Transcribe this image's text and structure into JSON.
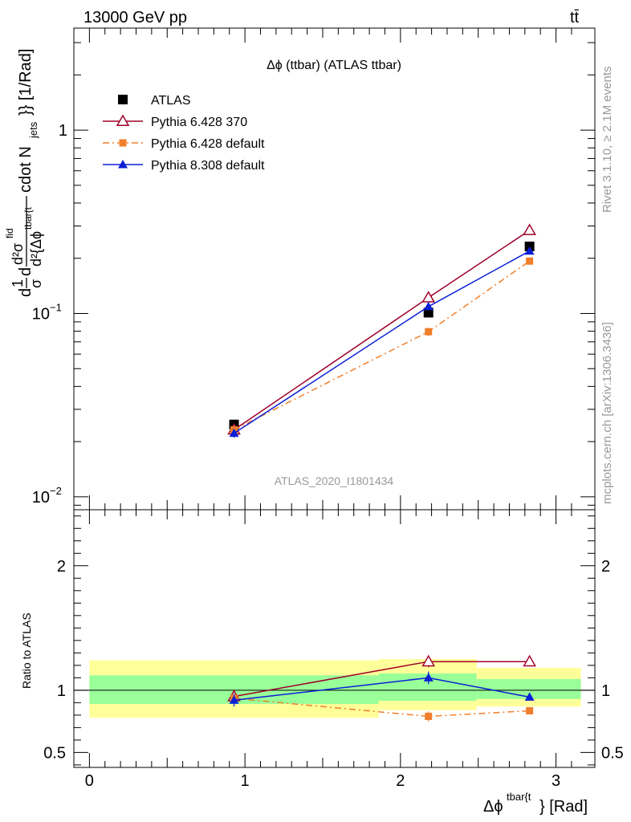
{
  "header": {
    "left": "13000 GeV pp",
    "right": "tt̄"
  },
  "side_labels": {
    "rivet": "Rivet 3.1.10, ≥ 2.1M events",
    "mcplots": "mcplots.cern.ch [arXiv:1306.3436]"
  },
  "chart_data": [
    {
      "type": "line",
      "title": "Δϕ (ttbar) (ATLAS ttbar)",
      "watermark": "ATLAS_2020_I1801434",
      "ylabel": "d¹/σ d d²σ^fid / d²{Δϕ^tbar{t} cdot N_jets}} [1/Rad]",
      "ylabel_parts": {
        "frac1_num": "1",
        "frac1_den": "σ",
        "d": "d",
        "frac2_num": "d²σ",
        "frac2_num_sup": "fid",
        "frac2_den": "d²{Δϕ",
        "frac2_den_sup": "tbar{t",
        "tail": "cdot N",
        "tail_sub": "jets",
        "tail_end": "}} [1/Rad]"
      },
      "yscale": "log",
      "ylim": [
        0.0085,
        3.6
      ],
      "xlim": [
        -0.1,
        3.25
      ],
      "yticks": [
        {
          "value": 1,
          "label": "1"
        },
        {
          "value": 0.1,
          "label": "10",
          "sup": "−1"
        },
        {
          "value": 0.01,
          "label": "10",
          "sup": "−2"
        }
      ],
      "legend_position": "top-left",
      "series": [
        {
          "name": "ATLAS",
          "color": "#000000",
          "marker": "square-filled",
          "line": "none",
          "x": [
            0.93,
            2.18,
            2.83
          ],
          "y": [
            0.0248,
            0.101,
            0.232
          ],
          "xerr": [
            0.93,
            0.31,
            0.33
          ]
        },
        {
          "name": "Pythia 6.428 370",
          "color": "#a0002a",
          "marker": "triangle-open",
          "line": "solid",
          "x": [
            0.93,
            2.18,
            2.83
          ],
          "y": [
            0.0232,
            0.122,
            0.284
          ],
          "yerr": [
            0.0008,
            0.004,
            0.006
          ]
        },
        {
          "name": "Pythia 6.428 default",
          "color": "#f07e2a",
          "marker": "square-filled-small",
          "line": "dashdot",
          "x": [
            0.93,
            2.18,
            2.83
          ],
          "y": [
            0.0232,
            0.0795,
            0.193
          ],
          "yerr": [
            0.0008,
            0.004,
            0.004
          ]
        },
        {
          "name": "Pythia 8.308 default",
          "color": "#0a1fd6",
          "marker": "triangle-filled",
          "line": "solid",
          "x": [
            0.93,
            2.18,
            2.83
          ],
          "y": [
            0.0222,
            0.109,
            0.219
          ],
          "yerr": [
            0.0012,
            0.004,
            0.004
          ]
        }
      ]
    },
    {
      "type": "line",
      "ylabel": "Ratio to ATLAS",
      "xlabel_parts": {
        "main": "Δϕ",
        "sup": "tbar{t",
        "tail": "} [Rad]"
      },
      "xlim": [
        -0.1,
        3.25
      ],
      "ylim": [
        0.38,
        2.45
      ],
      "xticks": [
        0,
        1,
        2,
        3
      ],
      "yticks": [
        {
          "value": 0.5,
          "label": "0.5"
        },
        {
          "value": 1,
          "label": "1"
        },
        {
          "value": 2,
          "label": "2"
        }
      ],
      "bands": [
        {
          "x0": 0.0,
          "x1": 1.86,
          "inner": [
            0.89,
            1.12
          ],
          "outer": [
            0.78,
            1.24
          ]
        },
        {
          "x0": 1.86,
          "x1": 2.49,
          "inner": [
            0.915,
            1.135
          ],
          "outer": [
            0.84,
            1.25
          ]
        },
        {
          "x0": 2.49,
          "x1": 3.16,
          "inner": [
            0.93,
            1.09
          ],
          "outer": [
            0.87,
            1.18
          ]
        }
      ],
      "series": [
        {
          "name": "Pythia 6.428 370",
          "color": "#a0002a",
          "marker": "triangle-open",
          "line": "solid",
          "x": [
            0.93,
            2.18,
            2.83
          ],
          "y": [
            0.95,
            1.23,
            1.23
          ],
          "yerr": [
            0.04,
            0.045,
            0.02
          ]
        },
        {
          "name": "Pythia 6.428 default",
          "color": "#f07e2a",
          "marker": "square-filled-small",
          "line": "dashdot",
          "x": [
            0.93,
            2.18,
            2.83
          ],
          "y": [
            0.935,
            0.79,
            0.835
          ],
          "yerr": [
            0.04,
            0.04,
            0.025
          ]
        },
        {
          "name": "Pythia 8.308 default",
          "color": "#0a1fd6",
          "marker": "triangle-filled",
          "line": "solid",
          "x": [
            0.93,
            2.18,
            2.83
          ],
          "y": [
            0.92,
            1.1,
            0.945
          ],
          "yerr": [
            0.05,
            0.05,
            0.025
          ]
        }
      ]
    }
  ]
}
